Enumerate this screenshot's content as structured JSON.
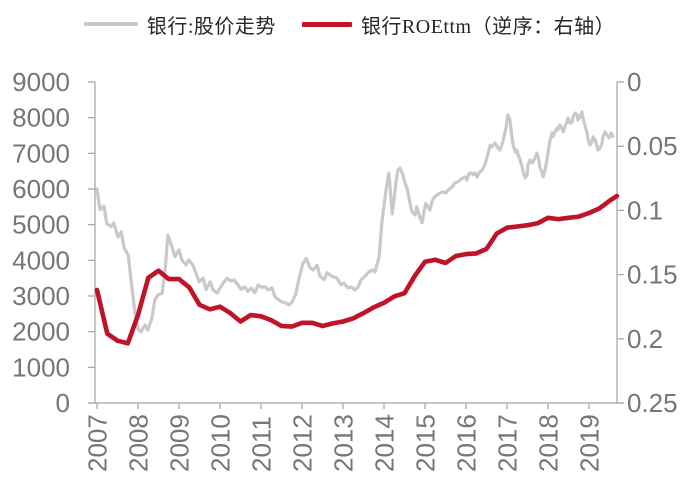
{
  "legend": {
    "items": [
      {
        "label": "银行:股价走势",
        "color": "#c9c9c9"
      },
      {
        "label": "银行ROEttm（逆序：右轴）",
        "color": "#bf1428"
      }
    ]
  },
  "colors": {
    "axis_line": "#a8a8a8",
    "tick_label": "#767676",
    "legend_text": "#262626",
    "background": "#ffffff",
    "price_line": "#c9c9c9",
    "roe_line": "#bf1428"
  },
  "chart_data": {
    "type": "line",
    "title": "",
    "grid": false,
    "legend_position": "top-center",
    "x_axis": {
      "tick_years": [
        2007,
        2008,
        2009,
        2010,
        2011,
        2012,
        2013,
        2014,
        2015,
        2016,
        2017,
        2018,
        2019
      ],
      "range": [
        2006.95,
        2019.68
      ],
      "label_rotation_deg": -90
    },
    "left_axis": {
      "tick_values": [
        0,
        1000,
        2000,
        3000,
        4000,
        5000,
        6000,
        7000,
        8000,
        9000
      ],
      "range": [
        0,
        9000
      ],
      "reversed": false
    },
    "right_axis": {
      "tick_values": [
        0,
        0.05,
        0.1,
        0.15,
        0.2,
        0.25
      ],
      "tick_labels": [
        "0",
        "0.05",
        "0.1",
        "0.15",
        "0.2",
        "0.25"
      ],
      "range": [
        0,
        0.25
      ],
      "reversed": true
    },
    "series": [
      {
        "name": "银行:股价走势",
        "axis": "left",
        "color": "#c9c9c9",
        "stroke_width": 3.2,
        "points": [
          [
            2007.0,
            6000
          ],
          [
            2007.07,
            5420
          ],
          [
            2007.17,
            5520
          ],
          [
            2007.24,
            5020
          ],
          [
            2007.34,
            4950
          ],
          [
            2007.41,
            5050
          ],
          [
            2007.51,
            4650
          ],
          [
            2007.59,
            4800
          ],
          [
            2007.66,
            4350
          ],
          [
            2007.76,
            4150
          ],
          [
            2007.83,
            3450
          ],
          [
            2007.93,
            2500
          ],
          [
            2008.0,
            2080
          ],
          [
            2008.07,
            1990
          ],
          [
            2008.17,
            2190
          ],
          [
            2008.24,
            2040
          ],
          [
            2008.34,
            2380
          ],
          [
            2008.41,
            2890
          ],
          [
            2008.49,
            3030
          ],
          [
            2008.59,
            3080
          ],
          [
            2008.66,
            3730
          ],
          [
            2008.73,
            4710
          ],
          [
            2008.83,
            4380
          ],
          [
            2008.9,
            4100
          ],
          [
            2009.0,
            4290
          ],
          [
            2009.07,
            4010
          ],
          [
            2009.17,
            3870
          ],
          [
            2009.24,
            4010
          ],
          [
            2009.34,
            3870
          ],
          [
            2009.41,
            3650
          ],
          [
            2009.49,
            3400
          ],
          [
            2009.59,
            3500
          ],
          [
            2009.66,
            3170
          ],
          [
            2009.76,
            3400
          ],
          [
            2009.83,
            3170
          ],
          [
            2009.93,
            3080
          ],
          [
            2010.0,
            3220
          ],
          [
            2010.1,
            3400
          ],
          [
            2010.17,
            3500
          ],
          [
            2010.27,
            3420
          ],
          [
            2010.34,
            3450
          ],
          [
            2010.44,
            3310
          ],
          [
            2010.51,
            3190
          ],
          [
            2010.61,
            3255
          ],
          [
            2010.68,
            3130
          ],
          [
            2010.76,
            3225
          ],
          [
            2010.85,
            3090
          ],
          [
            2010.93,
            3310
          ],
          [
            2011.0,
            3250
          ],
          [
            2011.1,
            3255
          ],
          [
            2011.17,
            3170
          ],
          [
            2011.27,
            3225
          ],
          [
            2011.34,
            2975
          ],
          [
            2011.44,
            2890
          ],
          [
            2011.51,
            2835
          ],
          [
            2011.61,
            2805
          ],
          [
            2011.68,
            2750
          ],
          [
            2011.76,
            2835
          ],
          [
            2011.85,
            3060
          ],
          [
            2011.93,
            3500
          ],
          [
            2012.02,
            3900
          ],
          [
            2012.1,
            4050
          ],
          [
            2012.2,
            3790
          ],
          [
            2012.27,
            3730
          ],
          [
            2012.37,
            3860
          ],
          [
            2012.44,
            3550
          ],
          [
            2012.54,
            3460
          ],
          [
            2012.61,
            3650
          ],
          [
            2012.68,
            3590
          ],
          [
            2012.78,
            3530
          ],
          [
            2012.85,
            3505
          ],
          [
            2012.95,
            3310
          ],
          [
            2013.02,
            3365
          ],
          [
            2013.12,
            3225
          ],
          [
            2013.2,
            3255
          ],
          [
            2013.29,
            3170
          ],
          [
            2013.37,
            3255
          ],
          [
            2013.44,
            3450
          ],
          [
            2013.54,
            3560
          ],
          [
            2013.61,
            3650
          ],
          [
            2013.71,
            3730
          ],
          [
            2013.78,
            3675
          ],
          [
            2013.88,
            4100
          ],
          [
            2013.95,
            5100
          ],
          [
            2014.05,
            5975
          ],
          [
            2014.12,
            6450
          ],
          [
            2014.2,
            5300
          ],
          [
            2014.24,
            5640
          ],
          [
            2014.29,
            6170
          ],
          [
            2014.34,
            6530
          ],
          [
            2014.39,
            6590
          ],
          [
            2014.46,
            6400
          ],
          [
            2014.51,
            6170
          ],
          [
            2014.56,
            6030
          ],
          [
            2014.63,
            5640
          ],
          [
            2014.68,
            5360
          ],
          [
            2014.76,
            5270
          ],
          [
            2014.8,
            5500
          ],
          [
            2014.88,
            5190
          ],
          [
            2014.93,
            5050
          ],
          [
            2014.98,
            5400
          ],
          [
            2015.02,
            5600
          ],
          [
            2015.07,
            5500
          ],
          [
            2015.12,
            5410
          ],
          [
            2015.17,
            5640
          ],
          [
            2015.22,
            5760
          ],
          [
            2015.29,
            5830
          ],
          [
            2015.37,
            5890
          ],
          [
            2015.44,
            5920
          ],
          [
            2015.51,
            5890
          ],
          [
            2015.59,
            6000
          ],
          [
            2015.66,
            6060
          ],
          [
            2015.73,
            6170
          ],
          [
            2015.8,
            6200
          ],
          [
            2015.85,
            6250
          ],
          [
            2015.93,
            6310
          ],
          [
            2015.98,
            6340
          ],
          [
            2016.02,
            6250
          ],
          [
            2016.07,
            6430
          ],
          [
            2016.12,
            6450
          ],
          [
            2016.17,
            6400
          ],
          [
            2016.22,
            6450
          ],
          [
            2016.27,
            6340
          ],
          [
            2016.34,
            6480
          ],
          [
            2016.39,
            6530
          ],
          [
            2016.46,
            6680
          ],
          [
            2016.54,
            7000
          ],
          [
            2016.59,
            7230
          ],
          [
            2016.63,
            7180
          ],
          [
            2016.71,
            7290
          ],
          [
            2016.78,
            7150
          ],
          [
            2016.83,
            7090
          ],
          [
            2016.9,
            7320
          ],
          [
            2016.98,
            7740
          ],
          [
            2017.02,
            8075
          ],
          [
            2017.07,
            7935
          ],
          [
            2017.12,
            7460
          ],
          [
            2017.15,
            7230
          ],
          [
            2017.2,
            7040
          ],
          [
            2017.24,
            7090
          ],
          [
            2017.27,
            6955
          ],
          [
            2017.32,
            6815
          ],
          [
            2017.37,
            6620
          ],
          [
            2017.39,
            6480
          ],
          [
            2017.44,
            6310
          ],
          [
            2017.49,
            6400
          ],
          [
            2017.51,
            6670
          ],
          [
            2017.56,
            6815
          ],
          [
            2017.61,
            6730
          ],
          [
            2017.63,
            6760
          ],
          [
            2017.68,
            6870
          ],
          [
            2017.73,
            7010
          ],
          [
            2017.76,
            6900
          ],
          [
            2017.8,
            6620
          ],
          [
            2017.85,
            6480
          ],
          [
            2017.88,
            6340
          ],
          [
            2017.93,
            6530
          ],
          [
            2017.98,
            6870
          ],
          [
            2018.05,
            7375
          ],
          [
            2018.1,
            7570
          ],
          [
            2018.12,
            7460
          ],
          [
            2018.17,
            7600
          ],
          [
            2018.22,
            7710
          ],
          [
            2018.24,
            7655
          ],
          [
            2018.29,
            7795
          ],
          [
            2018.34,
            7710
          ],
          [
            2018.37,
            7600
          ],
          [
            2018.41,
            7740
          ],
          [
            2018.46,
            7880
          ],
          [
            2018.49,
            7990
          ],
          [
            2018.54,
            7850
          ],
          [
            2018.59,
            7880
          ],
          [
            2018.61,
            8020
          ],
          [
            2018.66,
            8130
          ],
          [
            2018.71,
            8075
          ],
          [
            2018.73,
            7935
          ],
          [
            2018.78,
            8020
          ],
          [
            2018.83,
            8160
          ],
          [
            2018.85,
            8020
          ],
          [
            2018.9,
            7795
          ],
          [
            2018.95,
            7570
          ],
          [
            2018.98,
            7375
          ],
          [
            2019.02,
            7230
          ],
          [
            2019.07,
            7320
          ],
          [
            2019.1,
            7460
          ],
          [
            2019.15,
            7375
          ],
          [
            2019.2,
            7180
          ],
          [
            2019.22,
            7090
          ],
          [
            2019.27,
            7150
          ],
          [
            2019.32,
            7290
          ],
          [
            2019.34,
            7460
          ],
          [
            2019.39,
            7600
          ],
          [
            2019.44,
            7515
          ],
          [
            2019.49,
            7430
          ],
          [
            2019.54,
            7570
          ],
          [
            2019.58,
            7480
          ]
        ]
      },
      {
        "name": "银行ROEttm（逆序：右轴）",
        "axis": "right",
        "color": "#bf1428",
        "stroke_width": 4.6,
        "points": [
          [
            2007.0,
            0.162
          ],
          [
            2007.25,
            0.196
          ],
          [
            2007.5,
            0.2015
          ],
          [
            2007.75,
            0.2035
          ],
          [
            2008.0,
            0.1815
          ],
          [
            2008.25,
            0.1525
          ],
          [
            2008.5,
            0.147
          ],
          [
            2008.75,
            0.1535
          ],
          [
            2009.0,
            0.1535
          ],
          [
            2009.25,
            0.16
          ],
          [
            2009.5,
            0.1735
          ],
          [
            2009.75,
            0.177
          ],
          [
            2010.0,
            0.175
          ],
          [
            2010.25,
            0.18
          ],
          [
            2010.5,
            0.1865
          ],
          [
            2010.75,
            0.1815
          ],
          [
            2011.0,
            0.1825
          ],
          [
            2011.25,
            0.1855
          ],
          [
            2011.5,
            0.19
          ],
          [
            2011.75,
            0.1905
          ],
          [
            2012.0,
            0.1875
          ],
          [
            2012.25,
            0.1875
          ],
          [
            2012.5,
            0.19
          ],
          [
            2012.75,
            0.188
          ],
          [
            2013.0,
            0.1865
          ],
          [
            2013.25,
            0.184
          ],
          [
            2013.5,
            0.18
          ],
          [
            2013.75,
            0.1755
          ],
          [
            2014.0,
            0.172
          ],
          [
            2014.25,
            0.167
          ],
          [
            2014.5,
            0.1645
          ],
          [
            2014.75,
            0.151
          ],
          [
            2015.0,
            0.14
          ],
          [
            2015.25,
            0.1385
          ],
          [
            2015.5,
            0.141
          ],
          [
            2015.75,
            0.1355
          ],
          [
            2016.0,
            0.134
          ],
          [
            2016.25,
            0.1335
          ],
          [
            2016.5,
            0.13
          ],
          [
            2016.75,
            0.118
          ],
          [
            2017.0,
            0.1135
          ],
          [
            2017.25,
            0.1125
          ],
          [
            2017.5,
            0.1115
          ],
          [
            2017.75,
            0.11
          ],
          [
            2018.0,
            0.1058
          ],
          [
            2018.25,
            0.1068
          ],
          [
            2018.5,
            0.1058
          ],
          [
            2018.75,
            0.1048
          ],
          [
            2019.0,
            0.102
          ],
          [
            2019.25,
            0.0985
          ],
          [
            2019.5,
            0.0925
          ],
          [
            2019.68,
            0.0888
          ]
        ]
      }
    ]
  }
}
